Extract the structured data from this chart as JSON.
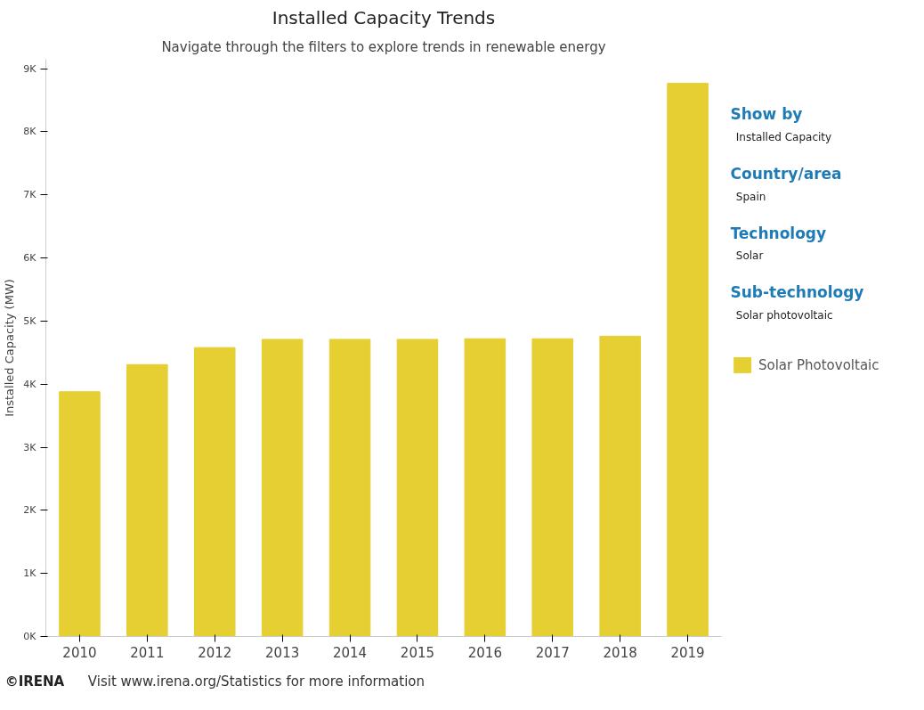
{
  "chart_data": {
    "type": "bar",
    "title": "Installed Capacity Trends",
    "subtitle": "Navigate through the filters to explore trends in renewable energy",
    "ylabel": "Installed Capacity (MW)",
    "categories": [
      "2010",
      "2011",
      "2012",
      "2013",
      "2014",
      "2015",
      "2016",
      "2017",
      "2018",
      "2019"
    ],
    "series": [
      {
        "name": "Solar Photovoltaic",
        "color": "#e5cf32",
        "values": [
          3880,
          4310,
          4580,
          4710,
          4710,
          4710,
          4720,
          4720,
          4760,
          8770
        ]
      }
    ],
    "ylim": [
      0,
      9150
    ],
    "yticks": [
      {
        "value": 0,
        "label": "0K"
      },
      {
        "value": 1000,
        "label": "1K"
      },
      {
        "value": 2000,
        "label": "2K"
      },
      {
        "value": 3000,
        "label": "3K"
      },
      {
        "value": 4000,
        "label": "4K"
      },
      {
        "value": 5000,
        "label": "5K"
      },
      {
        "value": 6000,
        "label": "6K"
      },
      {
        "value": 7000,
        "label": "7K"
      },
      {
        "value": 8000,
        "label": "8K"
      },
      {
        "value": 9000,
        "label": "9K"
      }
    ],
    "grid": false,
    "legend": "right",
    "annotations": [
      "Show by",
      "Installed Capacity",
      "Country/area",
      "Spain",
      "Technology",
      "Solar",
      "Sub-technology",
      "Solar photovoltaic",
      "©IRENA",
      "Visit www.irena.org/Statistics for more information"
    ]
  }
}
